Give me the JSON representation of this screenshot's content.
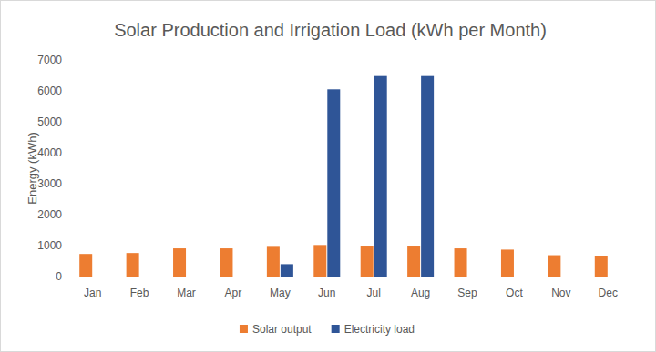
{
  "chart_data": {
    "type": "bar",
    "title": "Solar Production and Irrigation Load (kWh per Month)",
    "y_label": "Energy (kWh)",
    "categories": [
      "Jan",
      "Feb",
      "Mar",
      "Apr",
      "May",
      "Jun",
      "Jul",
      "Aug",
      "Sep",
      "Oct",
      "Nov",
      "Dec"
    ],
    "series": [
      {
        "name": "Solar output",
        "color": "#ed7d31",
        "values": [
          730,
          760,
          910,
          910,
          960,
          1020,
          970,
          970,
          910,
          870,
          690,
          660
        ]
      },
      {
        "name": "Electricity load",
        "color": "#2f5597",
        "values": [
          0,
          0,
          0,
          0,
          400,
          6050,
          6480,
          6480,
          0,
          0,
          0,
          0
        ]
      }
    ],
    "ylim": [
      0,
      7000
    ],
    "yticks": [
      0,
      1000,
      2000,
      3000,
      4000,
      5000,
      6000,
      7000
    ],
    "grid": false,
    "legend": "bottom"
  }
}
